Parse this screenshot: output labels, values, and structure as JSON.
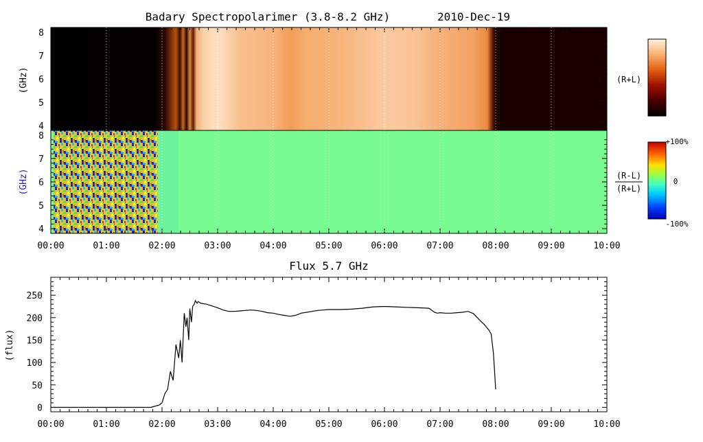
{
  "title": "Badary Spectropolarimer (3.8-8.2 GHz)",
  "date": "2010-Dec-19",
  "panels": {
    "intensity": {
      "ylabel": "(GHz)",
      "side_label": "(R+L)",
      "yticks": [
        "4",
        "5",
        "6",
        "7",
        "8"
      ],
      "colors": {
        "background_black": "#000000",
        "bright": "#fde0c2",
        "orange": "#f3a05c"
      }
    },
    "polarization": {
      "ylabel": "(GHz)",
      "side_label_top": "(R-L)",
      "side_label_bottom": "(R+L)",
      "yticks": [
        "4",
        "5",
        "6",
        "7",
        "8"
      ],
      "colorbar_labels": [
        "+100%",
        "0",
        "-100%"
      ],
      "colors": {
        "field": "#78fc92",
        "ylabel": "#1c1cc8"
      }
    }
  },
  "time_ticks": [
    "00:00",
    "01:00",
    "02:00",
    "03:00",
    "04:00",
    "05:00",
    "06:00",
    "07:00",
    "08:00",
    "09:00",
    "10:00"
  ],
  "chart_data": {
    "type": "line",
    "title": "Flux 5.7 GHz",
    "xlabel": "",
    "ylabel": "(flux)",
    "x_unit": "hours UT",
    "xlim": [
      0,
      10
    ],
    "ylim": [
      -10,
      290
    ],
    "yticks": [
      "0",
      "50",
      "100",
      "150",
      "200",
      "250"
    ],
    "x": [
      0.0,
      1.0,
      1.8,
      1.95,
      2.0,
      2.05,
      2.1,
      2.15,
      2.2,
      2.25,
      2.3,
      2.33,
      2.36,
      2.4,
      2.43,
      2.45,
      2.48,
      2.5,
      2.53,
      2.55,
      2.58,
      2.6,
      2.63,
      2.65,
      2.7,
      2.8,
      2.9,
      3.0,
      3.1,
      3.2,
      3.3,
      3.4,
      3.5,
      3.6,
      3.7,
      3.8,
      3.9,
      4.0,
      4.1,
      4.2,
      4.3,
      4.4,
      4.5,
      4.6,
      4.7,
      4.8,
      4.9,
      5.0,
      5.2,
      5.4,
      5.6,
      5.8,
      6.0,
      6.2,
      6.4,
      6.6,
      6.8,
      6.9,
      6.95,
      7.0,
      7.1,
      7.2,
      7.3,
      7.4,
      7.5,
      7.6,
      7.7,
      7.8,
      7.88,
      7.92,
      7.96,
      8.0
    ],
    "y": [
      0,
      0,
      0,
      5,
      10,
      30,
      40,
      80,
      60,
      140,
      110,
      150,
      100,
      210,
      180,
      200,
      150,
      220,
      190,
      225,
      230,
      238,
      232,
      236,
      232,
      230,
      226,
      222,
      217,
      214,
      214,
      215,
      216,
      217,
      216,
      214,
      211,
      210,
      207,
      205,
      203,
      205,
      210,
      212,
      214,
      216,
      217,
      218,
      218,
      219,
      221,
      224,
      225,
      224,
      223,
      222,
      221,
      212,
      210,
      211,
      210,
      210,
      211,
      212,
      214,
      209,
      196,
      184,
      172,
      163,
      120,
      40
    ],
    "colors": {
      "line": "#000000"
    }
  }
}
